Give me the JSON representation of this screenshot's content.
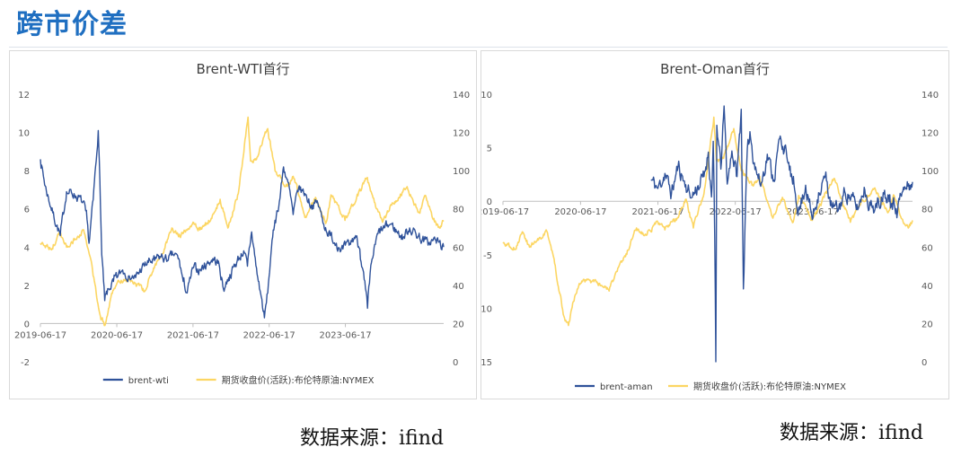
{
  "header": {
    "title": "跨市价差"
  },
  "colors": {
    "accent": "#1f6fc1",
    "brent_spread": "#2f529a",
    "brent_price": "#fcd663"
  },
  "chart_data": [
    {
      "type": "line",
      "title": "Brent-WTI首行",
      "x_ticks": [
        "2019-06-17",
        "2020-06-17",
        "2021-06-17",
        "2022-06-17",
        "2023-06-17"
      ],
      "x_range": [
        "2019-06-17",
        "2024-09-30"
      ],
      "y_left": {
        "range": [
          -2,
          12
        ],
        "ticks": [
          "-2",
          "0",
          "2",
          "4",
          "6",
          "8",
          "10",
          "12"
        ]
      },
      "y_right": {
        "range": [
          0,
          140
        ],
        "ticks": [
          "0",
          "20",
          "40",
          "60",
          "80",
          "100",
          "120",
          "140"
        ]
      },
      "legend": {
        "position": "bottom",
        "items": [
          "brent-wti",
          "期货收盘价(活跃):布伦特原油:NYMEX"
        ]
      },
      "grid": false,
      "series": [
        {
          "name": "brent-wti",
          "axis": "left",
          "points": [
            [
              "2019-06-17",
              8.6
            ],
            [
              "2019-07-10",
              7.2
            ],
            [
              "2019-08-15",
              5.8
            ],
            [
              "2019-09-20",
              4.6
            ],
            [
              "2019-10-20",
              6.9
            ],
            [
              "2019-11-25",
              6.8
            ],
            [
              "2019-12-30",
              6.4
            ],
            [
              "2020-01-20",
              5.9
            ],
            [
              "2020-02-05",
              4.2
            ],
            [
              "2020-02-25",
              6.5
            ],
            [
              "2020-03-10",
              8.5
            ],
            [
              "2020-03-20",
              10.1
            ],
            [
              "2020-03-28",
              7.5
            ],
            [
              "2020-04-06",
              3.6
            ],
            [
              "2020-04-20",
              1.2
            ],
            [
              "2020-05-10",
              1.8
            ],
            [
              "2020-06-01",
              2.2
            ],
            [
              "2020-06-17",
              2.4
            ],
            [
              "2020-07-15",
              2.8
            ],
            [
              "2020-08-15",
              2.5
            ],
            [
              "2020-09-15",
              2.4
            ],
            [
              "2020-10-15",
              2.9
            ],
            [
              "2020-11-15",
              3.2
            ],
            [
              "2020-12-15",
              3.3
            ],
            [
              "2021-01-15",
              3.5
            ],
            [
              "2021-02-15",
              3.3
            ],
            [
              "2021-03-15",
              3.6
            ],
            [
              "2021-04-10",
              3.4
            ],
            [
              "2021-05-01",
              2.2
            ],
            [
              "2021-05-20",
              1.6
            ],
            [
              "2021-06-17",
              2.9
            ],
            [
              "2021-07-20",
              2.8
            ],
            [
              "2021-08-20",
              3.1
            ],
            [
              "2021-09-20",
              3.4
            ],
            [
              "2021-10-20",
              3.1
            ],
            [
              "2021-11-10",
              1.8
            ],
            [
              "2021-12-05",
              2.4
            ],
            [
              "2022-01-15",
              3.3
            ],
            [
              "2022-02-15",
              3.8
            ],
            [
              "2022-03-05",
              3.0
            ],
            [
              "2022-03-25",
              4.8
            ],
            [
              "2022-04-20",
              2.6
            ],
            [
              "2022-05-10",
              1.4
            ],
            [
              "2022-05-25",
              0.3
            ],
            [
              "2022-06-10",
              1.6
            ],
            [
              "2022-06-25",
              3.6
            ],
            [
              "2022-07-15",
              5.4
            ],
            [
              "2022-08-05",
              6.4
            ],
            [
              "2022-08-25",
              8.2
            ],
            [
              "2022-09-15",
              7.4
            ],
            [
              "2022-10-10",
              5.7
            ],
            [
              "2022-11-05",
              7.1
            ],
            [
              "2022-12-05",
              6.8
            ],
            [
              "2023-01-05",
              6.2
            ],
            [
              "2023-02-05",
              6.3
            ],
            [
              "2023-03-05",
              5.2
            ],
            [
              "2023-04-05",
              4.6
            ],
            [
              "2023-05-05",
              4.2
            ],
            [
              "2023-06-05",
              3.9
            ],
            [
              "2023-07-05",
              4.1
            ],
            [
              "2023-08-05",
              4.6
            ],
            [
              "2023-08-25",
              3.9
            ],
            [
              "2023-09-15",
              2.3
            ],
            [
              "2023-10-01",
              0.8
            ],
            [
              "2023-10-20",
              3.2
            ],
            [
              "2023-11-20",
              4.7
            ],
            [
              "2023-12-20",
              5.0
            ],
            [
              "2024-01-20",
              5.2
            ],
            [
              "2024-02-20",
              4.8
            ],
            [
              "2024-03-20",
              4.5
            ],
            [
              "2024-04-20",
              5.0
            ],
            [
              "2024-05-20",
              4.7
            ],
            [
              "2024-06-20",
              4.4
            ],
            [
              "2024-07-20",
              4.2
            ],
            [
              "2024-08-20",
              4.4
            ],
            [
              "2024-09-30",
              4.0
            ]
          ]
        },
        {
          "name": "期货收盘价(活跃):布伦特原油:NYMEX",
          "axis": "right",
          "points": [
            [
              "2019-06-17",
              62
            ],
            [
              "2019-08-15",
              59
            ],
            [
              "2019-09-16",
              68
            ],
            [
              "2019-10-20",
              60
            ],
            [
              "2019-12-10",
              65
            ],
            [
              "2020-01-07",
              69
            ],
            [
              "2020-02-10",
              55
            ],
            [
              "2020-03-10",
              36
            ],
            [
              "2020-03-30",
              24
            ],
            [
              "2020-04-21",
              19
            ],
            [
              "2020-05-20",
              34
            ],
            [
              "2020-06-17",
              41
            ],
            [
              "2020-07-20",
              43
            ],
            [
              "2020-09-15",
              41
            ],
            [
              "2020-10-30",
              37
            ],
            [
              "2020-12-10",
              49
            ],
            [
              "2021-01-15",
              55
            ],
            [
              "2021-03-08",
              70
            ],
            [
              "2021-04-15",
              66
            ],
            [
              "2021-06-17",
              73
            ],
            [
              "2021-07-20",
              69
            ],
            [
              "2021-09-15",
              75
            ],
            [
              "2021-10-25",
              85
            ],
            [
              "2021-12-01",
              70
            ],
            [
              "2022-01-20",
              88
            ],
            [
              "2022-03-08",
              128
            ],
            [
              "2022-03-20",
              105
            ],
            [
              "2022-04-20",
              107
            ],
            [
              "2022-06-10",
              122
            ],
            [
              "2022-07-15",
              100
            ],
            [
              "2022-09-10",
              92
            ],
            [
              "2022-10-10",
              97
            ],
            [
              "2022-12-08",
              76
            ],
            [
              "2023-01-25",
              86
            ],
            [
              "2023-03-17",
              73
            ],
            [
              "2023-04-12",
              87
            ],
            [
              "2023-06-15",
              74
            ],
            [
              "2023-08-10",
              86
            ],
            [
              "2023-09-27",
              96
            ],
            [
              "2023-11-15",
              80
            ],
            [
              "2023-12-12",
              73
            ],
            [
              "2024-01-25",
              82
            ],
            [
              "2024-04-05",
              91
            ],
            [
              "2024-06-05",
              78
            ],
            [
              "2024-07-05",
              87
            ],
            [
              "2024-08-05",
              76
            ],
            [
              "2024-09-10",
              70
            ],
            [
              "2024-09-30",
              74
            ]
          ]
        }
      ]
    },
    {
      "type": "line",
      "title": "Brent-Oman首行",
      "x_ticks": [
        "2019-06-17",
        "2020-06-17",
        "2021-06-17",
        "2022-06-17",
        "2023-06-17"
      ],
      "x_range": [
        "2019-06-17",
        "2024-09-30"
      ],
      "y_left": {
        "range": [
          -15,
          10
        ],
        "ticks": [
          "-15",
          "-10",
          "-5",
          "0",
          "5",
          "10"
        ]
      },
      "y_right": {
        "range": [
          0,
          140
        ],
        "ticks": [
          "0",
          "20",
          "40",
          "60",
          "80",
          "100",
          "120",
          "140"
        ]
      },
      "legend": {
        "position": "bottom",
        "items": [
          "brent-aman",
          "期货收盘价(活跃):布伦特原油:NYMEX"
        ]
      },
      "grid": false,
      "series": [
        {
          "name": "brent-aman",
          "axis": "left",
          "points": [
            [
              "2021-05-15",
              2.0
            ],
            [
              "2021-06-17",
              1.2
            ],
            [
              "2021-07-20",
              2.6
            ],
            [
              "2021-08-20",
              0.7
            ],
            [
              "2021-09-20",
              3.3
            ],
            [
              "2021-10-20",
              1.9
            ],
            [
              "2021-11-20",
              0.3
            ],
            [
              "2021-12-20",
              1.3
            ],
            [
              "2022-01-20",
              2.3
            ],
            [
              "2022-02-10",
              4.6
            ],
            [
              "2022-02-25",
              0.4
            ],
            [
              "2022-03-05",
              5.6
            ],
            [
              "2022-03-12",
              -3.5
            ],
            [
              "2022-03-17",
              -15.0
            ],
            [
              "2022-03-22",
              7.1
            ],
            [
              "2022-04-10",
              3.0
            ],
            [
              "2022-04-25",
              8.9
            ],
            [
              "2022-05-10",
              1.6
            ],
            [
              "2022-06-01",
              4.7
            ],
            [
              "2022-06-25",
              2.3
            ],
            [
              "2022-07-15",
              8.6
            ],
            [
              "2022-07-25",
              -8.2
            ],
            [
              "2022-08-10",
              3.5
            ],
            [
              "2022-08-25",
              6.5
            ],
            [
              "2022-09-15",
              3.6
            ],
            [
              "2022-10-15",
              1.4
            ],
            [
              "2022-11-15",
              4.4
            ],
            [
              "2022-12-15",
              2.0
            ],
            [
              "2023-01-15",
              6.1
            ],
            [
              "2023-02-15",
              4.2
            ],
            [
              "2023-03-15",
              1.6
            ],
            [
              "2023-04-15",
              -0.8
            ],
            [
              "2023-05-15",
              1.5
            ],
            [
              "2023-06-15",
              -1.7
            ],
            [
              "2023-07-15",
              0.8
            ],
            [
              "2023-08-15",
              2.3
            ],
            [
              "2023-09-15",
              -0.5
            ],
            [
              "2023-10-15",
              -0.9
            ],
            [
              "2023-11-15",
              0.9
            ],
            [
              "2023-12-15",
              0.4
            ],
            [
              "2024-01-15",
              -0.8
            ],
            [
              "2024-02-15",
              1.3
            ],
            [
              "2024-03-15",
              -0.4
            ],
            [
              "2024-04-15",
              -0.6
            ],
            [
              "2024-05-15",
              0.8
            ],
            [
              "2024-06-15",
              0.6
            ],
            [
              "2024-07-15",
              -0.7
            ],
            [
              "2024-08-15",
              0.9
            ],
            [
              "2024-09-30",
              1.8
            ]
          ]
        },
        {
          "name": "期货收盘价(活跃):布伦特原油:NYMEX",
          "axis": "right",
          "points": [
            [
              "2019-06-17",
              62
            ],
            [
              "2019-08-15",
              59
            ],
            [
              "2019-09-16",
              68
            ],
            [
              "2019-10-20",
              60
            ],
            [
              "2019-12-10",
              65
            ],
            [
              "2020-01-07",
              69
            ],
            [
              "2020-02-10",
              55
            ],
            [
              "2020-03-10",
              36
            ],
            [
              "2020-03-30",
              24
            ],
            [
              "2020-04-21",
              19
            ],
            [
              "2020-05-20",
              34
            ],
            [
              "2020-06-17",
              41
            ],
            [
              "2020-07-20",
              43
            ],
            [
              "2020-09-15",
              41
            ],
            [
              "2020-10-30",
              37
            ],
            [
              "2020-12-10",
              49
            ],
            [
              "2021-01-15",
              55
            ],
            [
              "2021-03-08",
              70
            ],
            [
              "2021-04-15",
              66
            ],
            [
              "2021-06-17",
              73
            ],
            [
              "2021-07-20",
              69
            ],
            [
              "2021-09-15",
              75
            ],
            [
              "2021-10-25",
              85
            ],
            [
              "2021-12-01",
              70
            ],
            [
              "2022-01-20",
              88
            ],
            [
              "2022-03-08",
              128
            ],
            [
              "2022-03-20",
              105
            ],
            [
              "2022-04-20",
              107
            ],
            [
              "2022-06-10",
              122
            ],
            [
              "2022-07-15",
              100
            ],
            [
              "2022-09-10",
              92
            ],
            [
              "2022-10-10",
              97
            ],
            [
              "2022-12-08",
              76
            ],
            [
              "2023-01-25",
              86
            ],
            [
              "2023-03-17",
              73
            ],
            [
              "2023-04-12",
              87
            ],
            [
              "2023-06-15",
              74
            ],
            [
              "2023-08-10",
              86
            ],
            [
              "2023-09-27",
              96
            ],
            [
              "2023-11-15",
              80
            ],
            [
              "2023-12-12",
              73
            ],
            [
              "2024-01-25",
              82
            ],
            [
              "2024-04-05",
              91
            ],
            [
              "2024-06-05",
              78
            ],
            [
              "2024-07-05",
              87
            ],
            [
              "2024-08-05",
              76
            ],
            [
              "2024-09-10",
              70
            ],
            [
              "2024-09-30",
              74
            ]
          ]
        }
      ]
    }
  ],
  "footer": {
    "source_left": "数据来源：ifind",
    "source_right": "数据来源：ifind"
  }
}
